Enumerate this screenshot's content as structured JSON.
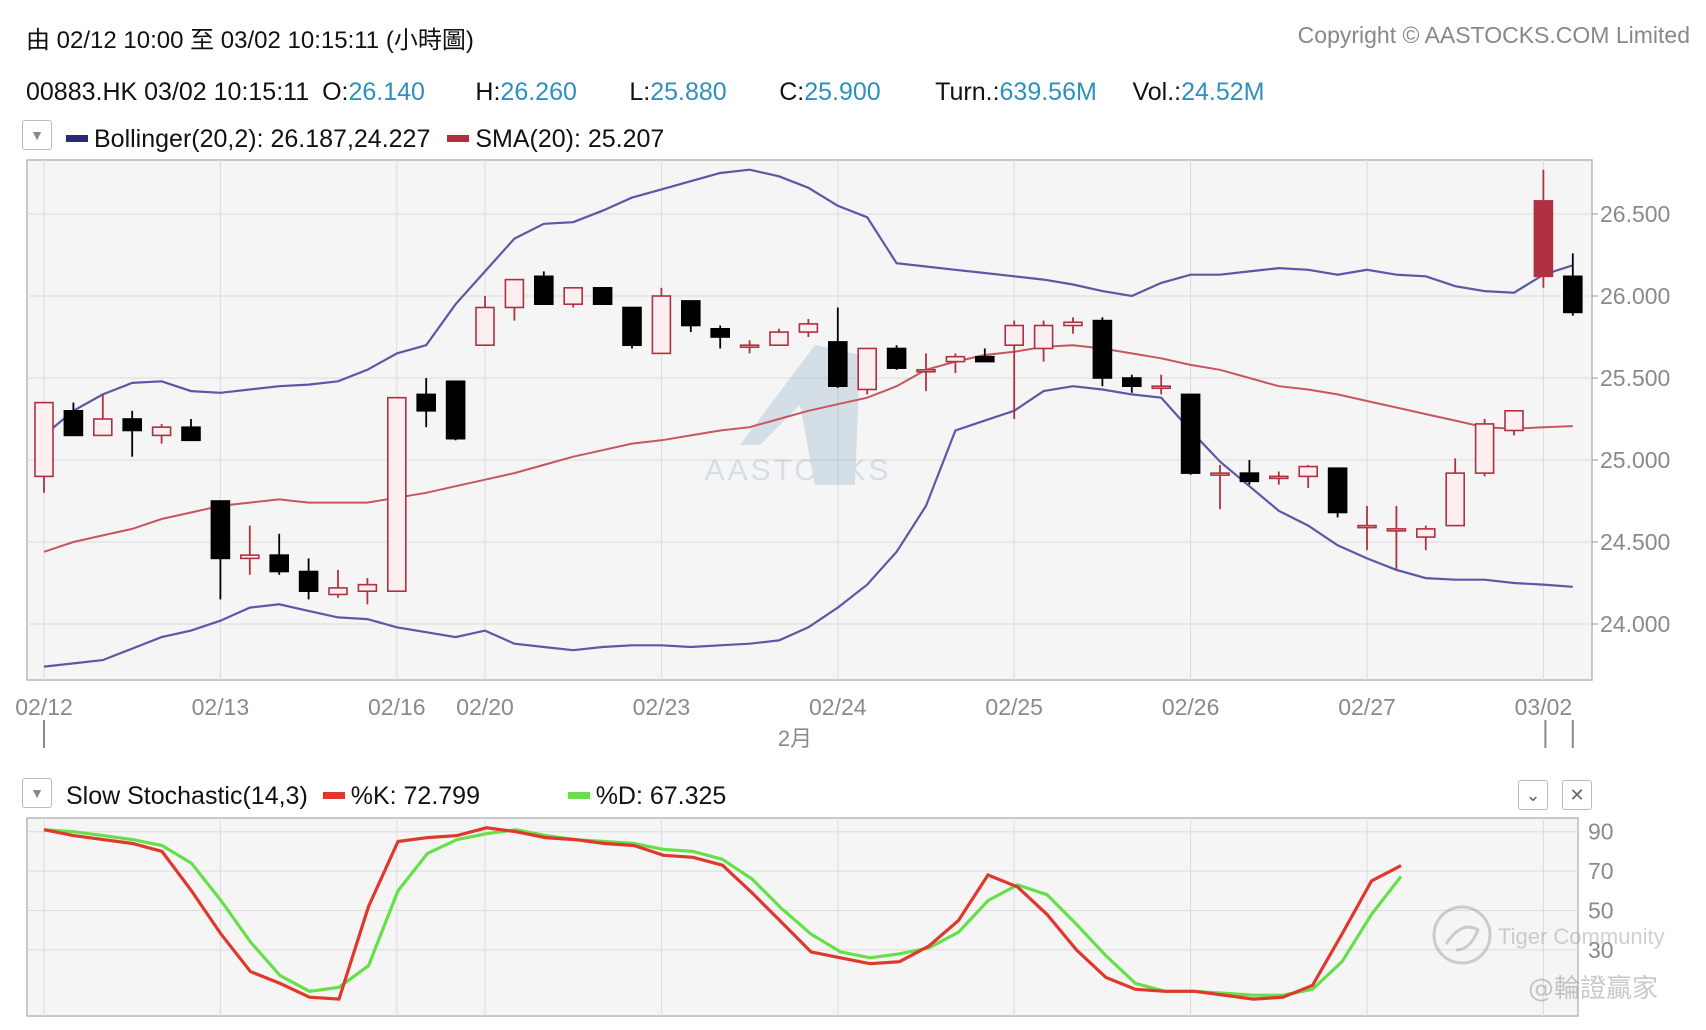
{
  "header": {
    "range": "由  02/12 10:00 至  03/02 10:15:11 (小時圖)",
    "copyright": "Copyright © AASTOCKS.COM Limited"
  },
  "quote": {
    "symbol_time": "00883.HK  03/02 10:15:11",
    "o_label": "O: ",
    "o": "26.140",
    "h_label": "H: ",
    "h": "26.260",
    "l_label": "L: ",
    "l": "25.880",
    "c_label": "C: ",
    "c": "25.900",
    "turn_label": "Turn.: ",
    "turn": "639.56M",
    "vol_label": "Vol.: ",
    "vol": "24.52M"
  },
  "legend_top": {
    "dropdown_icon": "chevron-down-icon",
    "boll": "Bollinger(20,2): 26.187,24.227",
    "sma": "SMA(20): 25.207",
    "boll_color": "#2a2a72",
    "sma_color": "#b03040"
  },
  "legend_bottom": {
    "name": "Slow Stochastic(14,3)",
    "k": "%K: 72.799",
    "d": "%D: 67.325",
    "k_color": "#e0382c",
    "d_color": "#66e04a",
    "collapse_icon": "chevron-down-icon",
    "close_icon": "close-icon"
  },
  "watermarks": {
    "main": "AASTOCKS",
    "community": "Tiger Community",
    "handle": "@輪證贏家"
  },
  "chart_data": [
    {
      "type": "candlestick",
      "x_labels": [
        "02/12",
        "02/13",
        "02/16",
        "02/20",
        "02/23",
        "02/24",
        "02/25",
        "02/26",
        "02/27",
        "03/02"
      ],
      "x_label_positions": [
        0,
        6,
        12,
        15,
        21,
        27,
        33,
        39,
        45,
        51
      ],
      "month_label": "2月",
      "yticks": [
        24.0,
        24.5,
        25.0,
        25.5,
        26.0,
        26.5
      ],
      "ylim": [
        23.65,
        26.82
      ],
      "candles": [
        [
          24.9,
          25.35,
          24.8,
          25.35
        ],
        [
          25.3,
          25.35,
          25.15,
          25.15
        ],
        [
          25.15,
          25.4,
          25.15,
          25.25
        ],
        [
          25.25,
          25.3,
          25.02,
          25.18
        ],
        [
          25.15,
          25.22,
          25.1,
          25.2
        ],
        [
          25.2,
          25.25,
          25.12,
          25.12
        ],
        [
          24.75,
          24.75,
          24.15,
          24.4
        ],
        [
          24.4,
          24.6,
          24.3,
          24.42
        ],
        [
          24.42,
          24.55,
          24.3,
          24.32
        ],
        [
          24.32,
          24.4,
          24.15,
          24.2
        ],
        [
          24.18,
          24.33,
          24.16,
          24.22
        ],
        [
          24.2,
          24.28,
          24.12,
          24.24
        ],
        [
          24.2,
          25.38,
          24.2,
          25.38
        ],
        [
          25.4,
          25.5,
          25.2,
          25.3
        ],
        [
          25.48,
          25.48,
          25.12,
          25.13
        ],
        [
          25.7,
          26.0,
          25.7,
          25.93
        ],
        [
          25.93,
          26.1,
          25.85,
          26.1
        ],
        [
          26.12,
          26.15,
          25.95,
          25.95
        ],
        [
          25.95,
          26.05,
          25.93,
          26.05
        ],
        [
          26.05,
          26.05,
          25.95,
          25.95
        ],
        [
          25.93,
          25.93,
          25.68,
          25.7
        ],
        [
          25.65,
          26.05,
          25.65,
          26.0
        ],
        [
          25.97,
          25.97,
          25.78,
          25.82
        ],
        [
          25.8,
          25.82,
          25.68,
          25.75
        ],
        [
          25.7,
          25.73,
          25.65,
          25.7
        ],
        [
          25.7,
          25.8,
          25.7,
          25.78
        ],
        [
          25.78,
          25.86,
          25.75,
          25.83
        ],
        [
          25.72,
          25.93,
          25.44,
          25.45
        ],
        [
          25.43,
          25.68,
          25.4,
          25.68
        ],
        [
          25.68,
          25.7,
          25.55,
          25.56
        ],
        [
          25.55,
          25.65,
          25.42,
          25.55
        ],
        [
          25.6,
          25.65,
          25.53,
          25.63
        ],
        [
          25.63,
          25.68,
          25.6,
          25.6
        ],
        [
          25.7,
          25.85,
          25.25,
          25.82
        ],
        [
          25.68,
          25.85,
          25.6,
          25.82
        ],
        [
          25.82,
          25.87,
          25.77,
          25.84
        ],
        [
          25.85,
          25.87,
          25.45,
          25.5
        ],
        [
          25.5,
          25.52,
          25.41,
          25.45
        ],
        [
          25.45,
          25.52,
          25.4,
          25.45
        ],
        [
          25.4,
          25.4,
          24.91,
          24.92
        ],
        [
          24.92,
          24.97,
          24.7,
          24.92
        ],
        [
          24.92,
          25.0,
          24.85,
          24.87
        ],
        [
          24.9,
          24.93,
          24.85,
          24.9
        ],
        [
          24.9,
          24.97,
          24.83,
          24.96
        ],
        [
          24.95,
          24.95,
          24.65,
          24.68
        ],
        [
          24.6,
          24.72,
          24.45,
          24.6
        ],
        [
          24.58,
          24.72,
          24.33,
          24.58
        ],
        [
          24.53,
          24.6,
          24.45,
          24.58
        ],
        [
          24.6,
          25.01,
          24.6,
          24.92
        ],
        [
          24.92,
          25.25,
          24.9,
          25.22
        ],
        [
          25.18,
          25.3,
          25.15,
          25.3
        ],
        [
          26.12,
          26.77,
          26.05,
          26.58
        ],
        [
          26.12,
          26.26,
          25.88,
          25.9
        ]
      ],
      "series": [
        {
          "name": "Bollinger(20,2)",
          "values_upper": [
            25.15,
            25.3,
            25.4,
            25.47,
            25.48,
            25.42,
            25.41,
            25.43,
            25.45,
            25.46,
            25.48,
            25.55,
            25.65,
            25.7,
            25.95,
            26.15,
            26.35,
            26.44,
            26.45,
            26.52,
            26.6,
            26.65,
            26.7,
            26.75,
            26.77,
            26.73,
            26.66,
            26.55,
            26.48,
            26.2,
            26.18,
            26.16,
            26.14,
            26.12,
            26.1,
            26.07,
            26.03,
            26.0,
            26.08,
            26.13,
            26.13,
            26.15,
            26.17,
            26.16,
            26.13,
            26.16,
            26.13,
            26.12,
            26.06,
            26.03,
            26.02,
            26.13,
            26.187
          ],
          "values_lower": [
            23.74,
            23.76,
            23.78,
            23.85,
            23.92,
            23.96,
            24.02,
            24.1,
            24.12,
            24.08,
            24.04,
            24.03,
            23.98,
            23.95,
            23.92,
            23.96,
            23.88,
            23.86,
            23.84,
            23.86,
            23.87,
            23.87,
            23.86,
            23.87,
            23.88,
            23.9,
            23.98,
            24.1,
            24.24,
            24.44,
            24.72,
            25.18,
            25.24,
            25.3,
            25.42,
            25.45,
            25.43,
            25.4,
            25.38,
            25.18,
            24.99,
            24.84,
            24.69,
            24.6,
            24.48,
            24.4,
            24.33,
            24.28,
            24.27,
            24.27,
            24.25,
            24.24,
            24.227
          ]
        },
        {
          "name": "SMA(20)",
          "values": [
            24.44,
            24.5,
            24.54,
            24.58,
            24.64,
            24.68,
            24.72,
            24.74,
            24.76,
            24.74,
            24.74,
            24.74,
            24.77,
            24.8,
            24.84,
            24.88,
            24.92,
            24.97,
            25.02,
            25.06,
            25.1,
            25.12,
            25.15,
            25.18,
            25.2,
            25.25,
            25.3,
            25.34,
            25.38,
            25.45,
            25.55,
            25.6,
            25.64,
            25.66,
            25.69,
            25.7,
            25.68,
            25.65,
            25.62,
            25.58,
            25.55,
            25.5,
            25.45,
            25.43,
            25.4,
            25.36,
            25.32,
            25.28,
            25.24,
            25.2,
            25.19,
            25.2,
            25.207
          ]
        }
      ]
    },
    {
      "type": "line",
      "title": "Slow Stochastic(14,3)",
      "yticks": [
        30,
        50,
        70,
        90
      ],
      "ylim": [
        0,
        99
      ],
      "series": [
        {
          "name": "%K",
          "values": [
            91,
            88,
            86,
            84,
            80,
            60,
            38,
            19,
            13,
            6,
            5,
            52,
            85,
            87,
            88,
            92,
            90,
            87,
            86,
            84,
            83,
            78,
            77,
            73,
            59,
            44,
            29,
            26,
            23,
            24,
            32,
            45,
            68,
            62,
            48,
            30,
            16,
            10,
            9,
            9,
            7,
            5,
            6,
            12,
            38,
            65,
            72.799
          ]
        },
        {
          "name": "%D",
          "values": [
            91,
            90,
            88,
            86,
            83,
            74,
            55,
            34,
            17,
            9,
            11,
            22,
            60,
            79,
            86,
            89,
            91,
            88,
            86,
            85,
            84,
            81,
            80,
            76,
            66,
            51,
            38,
            29,
            26,
            28,
            31,
            39,
            55,
            63,
            58,
            43,
            27,
            13,
            9,
            9,
            8,
            7,
            7,
            10,
            24,
            48,
            67.325
          ]
        }
      ]
    }
  ]
}
